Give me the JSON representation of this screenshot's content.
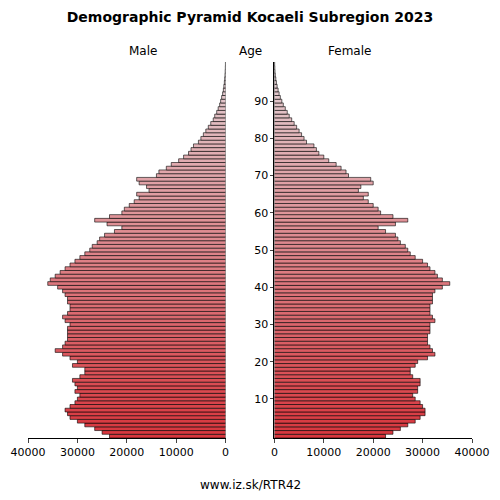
{
  "chart_data": {
    "type": "bar",
    "orientation": "horizontal",
    "title": "Demographic Pyramid Kocaeli Subregion 2023",
    "ylabel": "Age",
    "source": "www.iz.sk/RTR42",
    "categories": [
      0,
      1,
      2,
      3,
      4,
      5,
      6,
      7,
      8,
      9,
      10,
      11,
      12,
      13,
      14,
      15,
      16,
      17,
      18,
      19,
      20,
      21,
      22,
      23,
      24,
      25,
      26,
      27,
      28,
      29,
      30,
      31,
      32,
      33,
      34,
      35,
      36,
      37,
      38,
      39,
      40,
      41,
      42,
      43,
      44,
      45,
      46,
      47,
      48,
      49,
      50,
      51,
      52,
      53,
      54,
      55,
      56,
      57,
      58,
      59,
      60,
      61,
      62,
      63,
      64,
      65,
      66,
      67,
      68,
      69,
      70,
      71,
      72,
      73,
      74,
      75,
      76,
      77,
      78,
      79,
      80,
      81,
      82,
      83,
      84,
      85,
      86,
      87,
      88,
      89,
      90,
      91,
      92,
      93,
      94,
      95,
      96,
      97,
      98,
      99,
      100
    ],
    "series": [
      {
        "name": "Male",
        "color": "#d8363d",
        "values": [
          23500,
          25000,
          26500,
          28500,
          30000,
          31500,
          32000,
          32500,
          31500,
          30500,
          30000,
          29500,
          30500,
          30000,
          30500,
          31000,
          29500,
          28500,
          28500,
          31000,
          30000,
          31500,
          33000,
          34500,
          33000,
          32500,
          32000,
          32000,
          32000,
          32000,
          31500,
          32500,
          33000,
          32000,
          31500,
          31500,
          32000,
          32000,
          32500,
          33000,
          34000,
          36000,
          35500,
          34500,
          33500,
          32500,
          31500,
          30500,
          29500,
          28500,
          27500,
          27000,
          26000,
          25500,
          24500,
          22500,
          21000,
          24000,
          26500,
          23500,
          21000,
          20500,
          19500,
          18500,
          17500,
          18000,
          15500,
          16000,
          17500,
          18000,
          14000,
          13500,
          12000,
          11000,
          9500,
          8500,
          7500,
          7000,
          6500,
          5500,
          5000,
          4500,
          4000,
          3500,
          3000,
          2500,
          2200,
          1800,
          1500,
          1200,
          1000,
          800,
          600,
          450,
          350,
          250,
          180,
          120,
          80,
          50,
          30
        ]
      },
      {
        "name": "Female",
        "color": "#d8363d",
        "values": [
          22500,
          24000,
          25500,
          27000,
          28500,
          29500,
          30500,
          30500,
          30000,
          29500,
          28500,
          28000,
          29000,
          29000,
          29500,
          29500,
          28000,
          27500,
          27500,
          28500,
          29000,
          31000,
          32500,
          32000,
          31500,
          31000,
          31000,
          31000,
          31500,
          31500,
          31500,
          32500,
          32000,
          31500,
          31500,
          31500,
          32000,
          32000,
          32000,
          32500,
          34000,
          35500,
          34000,
          33000,
          32500,
          31500,
          31000,
          30000,
          28500,
          27500,
          27000,
          26500,
          25500,
          25000,
          24500,
          22500,
          21000,
          24500,
          27000,
          24000,
          21500,
          21000,
          20000,
          19000,
          18000,
          19000,
          17000,
          17500,
          20000,
          19500,
          15000,
          14500,
          13500,
          12500,
          11000,
          10000,
          9000,
          8500,
          8000,
          6500,
          6000,
          5500,
          5000,
          4500,
          4000,
          3500,
          3000,
          2600,
          2200,
          1800,
          1500,
          1200,
          950,
          750,
          550,
          400,
          280,
          180,
          120,
          80,
          50
        ]
      }
    ],
    "xlim": [
      0,
      40000
    ],
    "xticks": [
      0,
      10000,
      20000,
      30000,
      40000
    ],
    "ylim": [
      -0.5,
      100.5
    ],
    "yticks": [
      10,
      20,
      30,
      40,
      50,
      60,
      70,
      80,
      90
    ],
    "grid": false
  }
}
